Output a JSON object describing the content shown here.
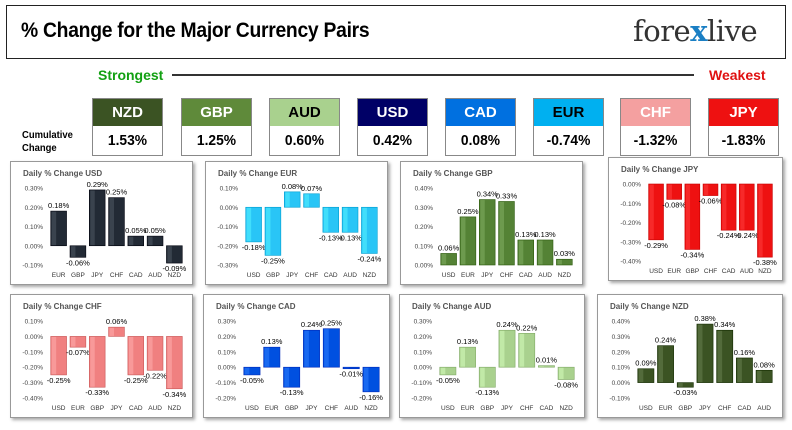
{
  "header": {
    "title": "% Change for the Major Currency Pairs",
    "logo_text_left": "fore",
    "logo_text_x": "x",
    "logo_text_right": "live"
  },
  "ranking": {
    "strongest_label": "Strongest",
    "weakest_label": "Weakest",
    "cumulative_label_line1": "Cumulative",
    "cumulative_label_line2": "Change",
    "pairs": [
      {
        "code": "NZD",
        "value": "1.53%",
        "bg": "#3b5323",
        "fg": "#ffffff"
      },
      {
        "code": "GBP",
        "value": "1.25%",
        "bg": "#5f8a3a",
        "fg": "#ffffff"
      },
      {
        "code": "AUD",
        "value": "0.60%",
        "bg": "#a9d18e",
        "fg": "#000000"
      },
      {
        "code": "USD",
        "value": "0.42%",
        "bg": "#000066",
        "fg": "#ffffff"
      },
      {
        "code": "CAD",
        "value": "0.08%",
        "bg": "#0070e0",
        "fg": "#ffffff"
      },
      {
        "code": "EUR",
        "value": "-0.74%",
        "bg": "#00b0f0",
        "fg": "#000000"
      },
      {
        "code": "CHF",
        "value": "-1.32%",
        "bg": "#f4a0a0",
        "fg": "#ffffff"
      },
      {
        "code": "JPY",
        "value": "-1.83%",
        "bg": "#ee1111",
        "fg": "#ffffff"
      }
    ]
  },
  "chart_data": [
    {
      "type": "bar",
      "title": "Daily % Change USD",
      "categories": [
        "EUR",
        "GBP",
        "JPY",
        "CHF",
        "CAD",
        "AUD",
        "NZD"
      ],
      "values": [
        0.18,
        -0.06,
        0.29,
        0.25,
        0.05,
        0.05,
        -0.09
      ],
      "value_labels": [
        "0.18%",
        "-0.06%",
        "0.29%",
        "0.25%",
        "0.05%",
        "0.05%",
        "-0.09%"
      ],
      "ylim": [
        -0.1,
        0.3
      ],
      "ticks": [
        0.3,
        0.2,
        0.1,
        0.0,
        -0.1
      ],
      "tick_labels": [
        "0.30%",
        "0.20%",
        "0.10%",
        "0.00%",
        "-0.10%"
      ],
      "color": "#222a35"
    },
    {
      "type": "bar",
      "title": "Daily % Change EUR",
      "categories": [
        "USD",
        "GBP",
        "JPY",
        "CHF",
        "CAD",
        "AUD",
        "NZD"
      ],
      "values": [
        -0.18,
        -0.25,
        0.08,
        0.07,
        -0.13,
        -0.13,
        -0.24
      ],
      "value_labels": [
        "-0.18%",
        "-0.25%",
        "0.08%",
        "0.07%",
        "-0.13%",
        "-0.13%",
        "-0.24%"
      ],
      "ylim": [
        -0.3,
        0.1
      ],
      "ticks": [
        0.1,
        0.0,
        -0.1,
        -0.2,
        -0.3
      ],
      "tick_labels": [
        "0.10%",
        "0.00%",
        "-0.10%",
        "-0.20%",
        "-0.30%"
      ],
      "color": "#29c5f6"
    },
    {
      "type": "bar",
      "title": "Daily % Change GBP",
      "categories": [
        "USD",
        "EUR",
        "JPY",
        "CHF",
        "CAD",
        "AUD",
        "NZD"
      ],
      "values": [
        0.06,
        0.25,
        0.34,
        0.33,
        0.13,
        0.13,
        0.03
      ],
      "value_labels": [
        "0.06%",
        "0.25%",
        "0.34%",
        "0.33%",
        "0.13%",
        "0.13%",
        "0.03%"
      ],
      "ylim": [
        0.0,
        0.4
      ],
      "ticks": [
        0.4,
        0.3,
        0.2,
        0.1,
        0.0
      ],
      "tick_labels": [
        "0.40%",
        "0.30%",
        "0.20%",
        "0.10%",
        "0.00%"
      ],
      "color": "#548235"
    },
    {
      "type": "bar",
      "title": "Daily % Change JPY",
      "categories": [
        "USD",
        "EUR",
        "GBP",
        "CHF",
        "CAD",
        "AUD",
        "NZD"
      ],
      "values": [
        -0.29,
        -0.08,
        -0.34,
        -0.06,
        -0.24,
        -0.24,
        -0.38
      ],
      "value_labels": [
        "-0.29%",
        "-0.08%",
        "-0.34%",
        "-0.06%",
        "-0.24%",
        "-0.24%",
        "-0.38%"
      ],
      "ylim": [
        -0.4,
        0.0
      ],
      "ticks": [
        0.0,
        -0.1,
        -0.2,
        -0.3,
        -0.4
      ],
      "tick_labels": [
        "0.00%",
        "-0.10%",
        "-0.20%",
        "-0.30%",
        "-0.40%"
      ],
      "color": "#ee1111"
    },
    {
      "type": "bar",
      "title": "Daily % Change CHF",
      "categories": [
        "USD",
        "EUR",
        "GBP",
        "JPY",
        "CAD",
        "AUD",
        "NZD"
      ],
      "values": [
        -0.25,
        -0.07,
        -0.33,
        0.06,
        -0.25,
        -0.22,
        -0.34
      ],
      "value_labels": [
        "-0.25%",
        "-0.07%",
        "-0.33%",
        "0.06%",
        "-0.25%",
        "-0.22%",
        "-0.34%"
      ],
      "ylim": [
        -0.4,
        0.1
      ],
      "ticks": [
        0.1,
        0.0,
        -0.1,
        -0.2,
        -0.3,
        -0.4
      ],
      "tick_labels": [
        "0.10%",
        "0.00%",
        "-0.10%",
        "-0.20%",
        "-0.30%",
        "-0.40%"
      ],
      "color": "#f08080"
    },
    {
      "type": "bar",
      "title": "Daily % Change CAD",
      "categories": [
        "USD",
        "EUR",
        "GBP",
        "JPY",
        "CHF",
        "AUD",
        "NZD"
      ],
      "values": [
        -0.05,
        0.13,
        -0.13,
        0.24,
        0.25,
        -0.01,
        -0.16
      ],
      "value_labels": [
        "-0.05%",
        "0.13%",
        "-0.13%",
        "0.24%",
        "0.25%",
        "-0.01%",
        "-0.16%"
      ],
      "ylim": [
        -0.2,
        0.3
      ],
      "ticks": [
        0.3,
        0.2,
        0.1,
        0.0,
        -0.1,
        -0.2
      ],
      "tick_labels": [
        "0.30%",
        "0.20%",
        "0.10%",
        "0.00%",
        "-0.10%",
        "-0.20%"
      ],
      "color": "#0050e0"
    },
    {
      "type": "bar",
      "title": "Daily % Change AUD",
      "categories": [
        "USD",
        "EUR",
        "GBP",
        "JPY",
        "CHF",
        "CAD",
        "NZD"
      ],
      "values": [
        -0.05,
        0.13,
        -0.13,
        0.24,
        0.22,
        0.01,
        -0.08
      ],
      "value_labels": [
        "-0.05%",
        "0.13%",
        "-0.13%",
        "0.24%",
        "0.22%",
        "0.01%",
        "-0.08%"
      ],
      "ylim": [
        -0.2,
        0.3
      ],
      "ticks": [
        0.3,
        0.2,
        0.1,
        0.0,
        -0.1,
        -0.2
      ],
      "tick_labels": [
        "0.30%",
        "0.20%",
        "0.10%",
        "0.00%",
        "-0.10%",
        "-0.20%"
      ],
      "color": "#a9d18e"
    },
    {
      "type": "bar",
      "title": "Daily % Change NZD",
      "categories": [
        "USD",
        "EUR",
        "GBP",
        "JPY",
        "CHF",
        "CAD",
        "AUD"
      ],
      "values": [
        0.09,
        0.24,
        -0.03,
        0.38,
        0.34,
        0.16,
        0.08
      ],
      "value_labels": [
        "0.09%",
        "0.24%",
        "-0.03%",
        "0.38%",
        "0.34%",
        "0.16%",
        "0.08%"
      ],
      "ylim": [
        -0.1,
        0.4
      ],
      "ticks": [
        0.4,
        0.3,
        0.2,
        0.1,
        0.0,
        -0.1
      ],
      "tick_labels": [
        "0.40%",
        "0.30%",
        "0.20%",
        "0.10%",
        "0.00%",
        "-0.10%"
      ],
      "color": "#3b5323"
    }
  ]
}
